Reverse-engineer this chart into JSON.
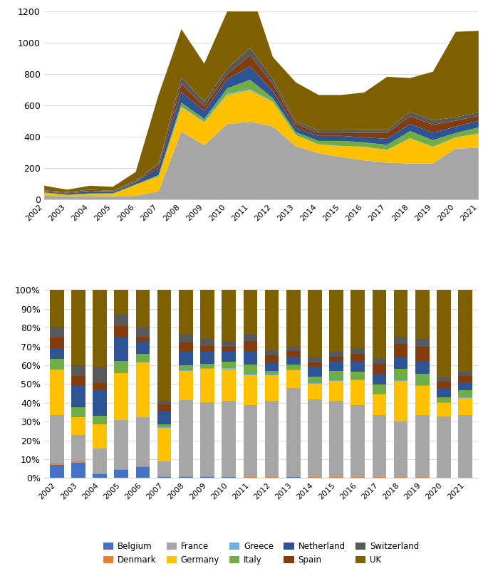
{
  "years": [
    2002,
    2003,
    2004,
    2005,
    2006,
    2007,
    2008,
    2009,
    2010,
    2011,
    2012,
    2013,
    2014,
    2015,
    2016,
    2017,
    2018,
    2019,
    2020,
    2021
  ],
  "countries": [
    "Belgium",
    "Denmark",
    "France",
    "Germany",
    "Greece",
    "Italy",
    "Netherland",
    "Spain",
    "Switzerland",
    "UK"
  ],
  "colors": [
    "#4472c4",
    "#ed7d31",
    "#a6a6a6",
    "#ffc000",
    "#70b0e0",
    "#70ad47",
    "#2f5496",
    "#843c0c",
    "#595959",
    "#7f6000"
  ],
  "area_data": {
    "Belgium": [
      4,
      4,
      3,
      2,
      3,
      4,
      4,
      3,
      3,
      3,
      3,
      2,
      2,
      2,
      2,
      2,
      2,
      2,
      2,
      2
    ],
    "Denmark": [
      1,
      1,
      1,
      1,
      1,
      1,
      2,
      1,
      1,
      1,
      1,
      1,
      1,
      1,
      1,
      1,
      1,
      1,
      1,
      1
    ],
    "France": [
      22,
      18,
      22,
      18,
      22,
      50,
      430,
      345,
      480,
      495,
      465,
      340,
      295,
      270,
      250,
      235,
      230,
      230,
      325,
      330
    ],
    "Germany": [
      18,
      8,
      12,
      18,
      70,
      95,
      155,
      145,
      185,
      200,
      155,
      70,
      55,
      70,
      85,
      80,
      160,
      105,
      70,
      90
    ],
    "Greece": [
      0,
      0,
      0,
      0,
      0,
      1,
      4,
      5,
      8,
      8,
      4,
      2,
      2,
      2,
      2,
      2,
      2,
      2,
      2,
      2
    ],
    "Italy": [
      4,
      4,
      4,
      4,
      4,
      8,
      25,
      18,
      35,
      60,
      22,
      18,
      22,
      32,
      28,
      32,
      45,
      42,
      28,
      38
    ],
    "Netherland": [
      4,
      8,
      12,
      8,
      12,
      45,
      70,
      50,
      60,
      85,
      45,
      28,
      32,
      32,
      32,
      38,
      45,
      48,
      40,
      42
    ],
    "Spain": [
      4,
      4,
      4,
      4,
      4,
      20,
      50,
      28,
      32,
      70,
      45,
      22,
      18,
      18,
      28,
      38,
      50,
      50,
      38,
      32
    ],
    "Switzerland": [
      4,
      4,
      8,
      4,
      8,
      12,
      45,
      30,
      32,
      48,
      32,
      18,
      18,
      18,
      18,
      18,
      28,
      28,
      22,
      22
    ],
    "UK": [
      30,
      15,
      25,
      25,
      55,
      435,
      305,
      245,
      365,
      380,
      140,
      250,
      225,
      225,
      240,
      340,
      215,
      310,
      545,
      520
    ]
  },
  "pct_data": {
    "Belgium": [
      0.074,
      0.083,
      0.022,
      0.045,
      0.06,
      0.006,
      0.006,
      0.007,
      0.004,
      0.003,
      0.003,
      0.004,
      0.003,
      0.003,
      0.003,
      0.003,
      0.003,
      0.003,
      0.002,
      0.002
    ],
    "Denmark": [
      0.009,
      0.005,
      0.004,
      0.004,
      0.004,
      0.002,
      0.002,
      0.001,
      0.001,
      0.001,
      0.001,
      0.001,
      0.001,
      0.001,
      0.001,
      0.001,
      0.001,
      0.001,
      0.001,
      0.001
    ],
    "France": [
      0.27,
      0.14,
      0.13,
      0.26,
      0.26,
      0.08,
      0.405,
      0.395,
      0.405,
      0.385,
      0.405,
      0.475,
      0.415,
      0.405,
      0.385,
      0.33,
      0.295,
      0.33,
      0.325,
      0.33
    ],
    "Germany": [
      0.26,
      0.095,
      0.13,
      0.25,
      0.29,
      0.18,
      0.158,
      0.178,
      0.168,
      0.158,
      0.138,
      0.095,
      0.083,
      0.108,
      0.132,
      0.112,
      0.218,
      0.155,
      0.073,
      0.093
    ],
    "Greece": [
      0.0,
      0.0,
      0.0,
      0.0,
      0.0,
      0.002,
      0.004,
      0.005,
      0.007,
      0.007,
      0.004,
      0.003,
      0.003,
      0.003,
      0.003,
      0.003,
      0.003,
      0.003,
      0.002,
      0.002
    ],
    "Italy": [
      0.06,
      0.055,
      0.045,
      0.065,
      0.045,
      0.014,
      0.025,
      0.022,
      0.033,
      0.05,
      0.02,
      0.025,
      0.034,
      0.05,
      0.043,
      0.048,
      0.062,
      0.062,
      0.028,
      0.038
    ],
    "Netherland": [
      0.06,
      0.115,
      0.135,
      0.125,
      0.07,
      0.072,
      0.07,
      0.062,
      0.054,
      0.068,
      0.041,
      0.039,
      0.048,
      0.049,
      0.051,
      0.055,
      0.062,
      0.07,
      0.043,
      0.043
    ],
    "Spain": [
      0.06,
      0.05,
      0.04,
      0.06,
      0.022,
      0.035,
      0.05,
      0.033,
      0.028,
      0.056,
      0.041,
      0.032,
      0.027,
      0.027,
      0.043,
      0.055,
      0.07,
      0.076,
      0.038,
      0.033
    ],
    "Switzerland": [
      0.06,
      0.055,
      0.085,
      0.06,
      0.048,
      0.021,
      0.046,
      0.039,
      0.028,
      0.037,
      0.028,
      0.025,
      0.027,
      0.027,
      0.028,
      0.027,
      0.037,
      0.041,
      0.023,
      0.023
    ],
    "UK": [
      0.207,
      0.402,
      0.409,
      0.131,
      0.201,
      0.588,
      0.234,
      0.258,
      0.272,
      0.235,
      0.319,
      0.301,
      0.359,
      0.327,
      0.311,
      0.366,
      0.249,
      0.259,
      0.465,
      0.435
    ]
  },
  "ylim_area": [
    0,
    1200
  ],
  "yticks_area": [
    0,
    200,
    400,
    600,
    800,
    1000,
    1200
  ]
}
